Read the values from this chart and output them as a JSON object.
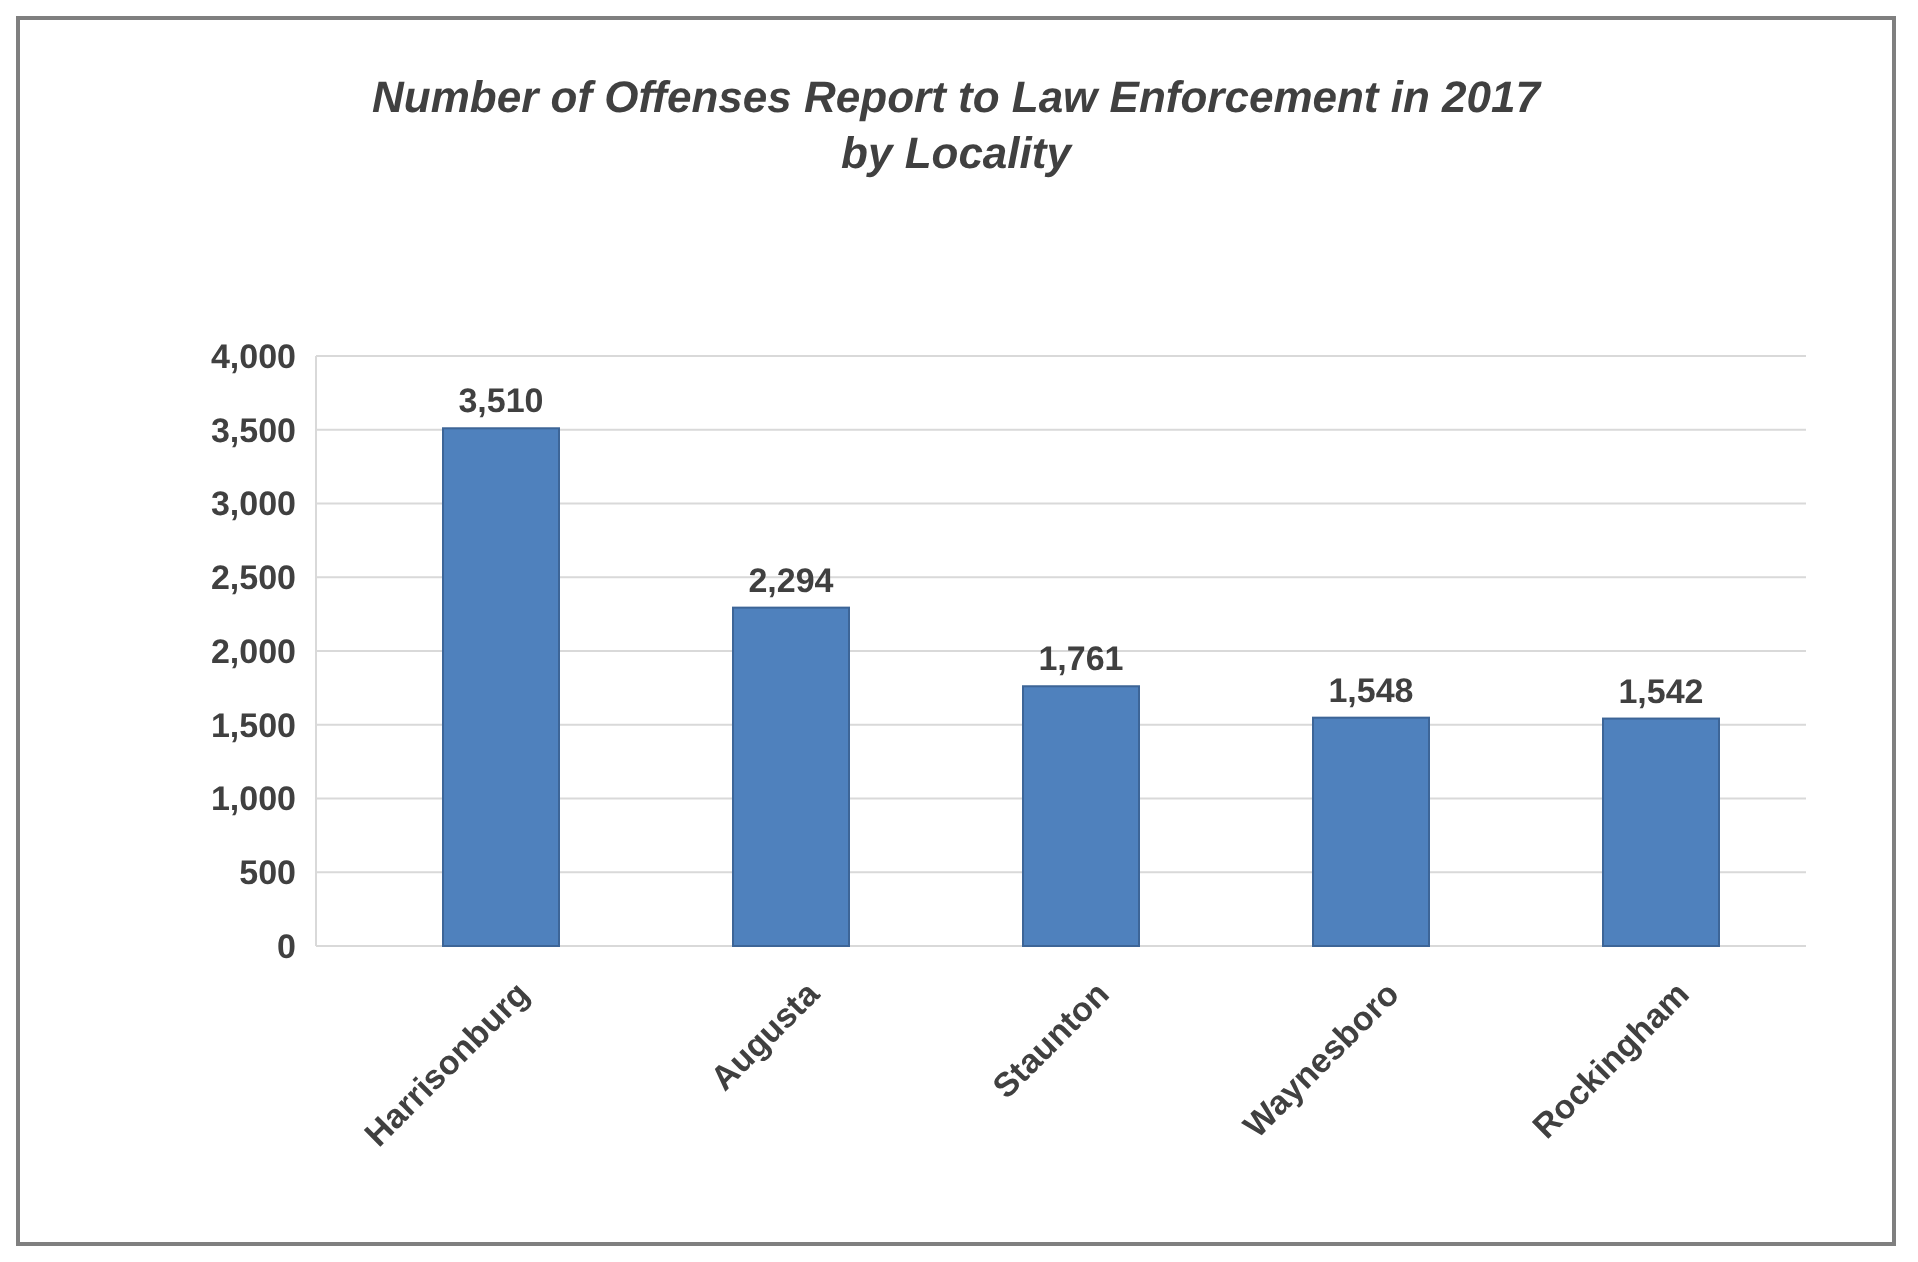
{
  "chart_data": {
    "type": "bar",
    "title": "Number of Offenses Report to Law Enforcement in 2017\nby Locality",
    "categories": [
      "Harrisonburg",
      "Augusta",
      "Staunton",
      "Waynesboro",
      "Rockingham"
    ],
    "values": [
      3510,
      2294,
      1761,
      1548,
      1542
    ],
    "value_labels": [
      "3,510",
      "2,294",
      "1,761",
      "1,548",
      "1,542"
    ],
    "color": "#4f81bd",
    "ylim": [
      0,
      4000
    ],
    "yticks": [
      0,
      500,
      {
        "value": 1000,
        "label": "1,000"
      },
      {
        "value": 1500,
        "label": "1,500"
      },
      {
        "value": 2000,
        "label": "2,000"
      },
      {
        "value": 2500,
        "label": "2,500"
      },
      {
        "value": 3000,
        "label": "3,000"
      },
      {
        "value": 3500,
        "label": "3,500"
      },
      {
        "value": 4000,
        "label": "4,000"
      }
    ],
    "grid": "y"
  }
}
